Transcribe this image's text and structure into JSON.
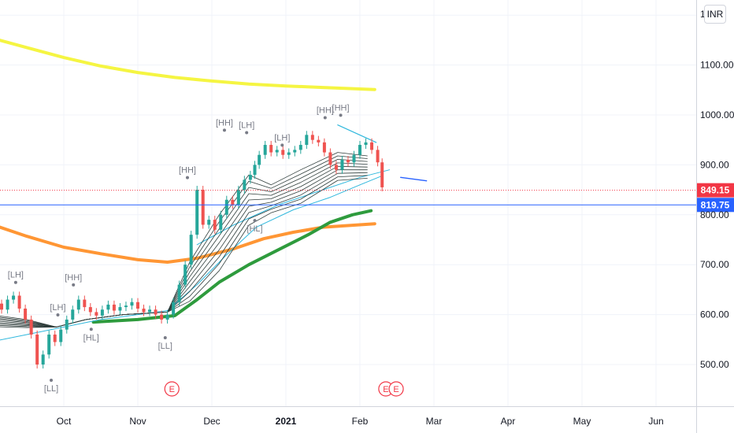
{
  "currency": "INR",
  "chart_data": {
    "type": "candlestick",
    "title": "",
    "y_axis": {
      "ticks": [
        "500.00",
        "600.00",
        "700.00",
        "800.00",
        "900.00",
        "1000.00",
        "1100.00",
        "1200.00"
      ],
      "visible_top_tick": "1"
    },
    "x_axis": {
      "ticks": [
        "Oct",
        "Nov",
        "Dec",
        "2021",
        "Feb",
        "Mar",
        "Apr",
        "May",
        "Jun"
      ]
    },
    "price_labels": [
      {
        "value": 849.15,
        "text": "849.15",
        "color": "#f23645"
      },
      {
        "value": 819.75,
        "text": "819.75",
        "color": "#2962ff"
      }
    ],
    "swing_labels": [
      {
        "text": "[LH]",
        "month": 8.85,
        "price": 655,
        "pos": "above"
      },
      {
        "text": "[LL]",
        "month": 9.33,
        "price": 478,
        "pos": "below"
      },
      {
        "text": "[LH]",
        "month": 9.42,
        "price": 590,
        "pos": "above"
      },
      {
        "text": "[HH]",
        "month": 9.63,
        "price": 650,
        "pos": "above"
      },
      {
        "text": "[HL]",
        "month": 9.87,
        "price": 580,
        "pos": "below"
      },
      {
        "text": "[LL]",
        "month": 10.87,
        "price": 563,
        "pos": "below"
      },
      {
        "text": "[HH]",
        "month": 11.17,
        "price": 865,
        "pos": "above"
      },
      {
        "text": "[HH]",
        "month": 11.67,
        "price": 960,
        "pos": "above"
      },
      {
        "text": "[LH]",
        "month": 11.97,
        "price": 955,
        "pos": "above"
      },
      {
        "text": "[HL]",
        "month": 12.08,
        "price": 798,
        "pos": "below"
      },
      {
        "text": "[LH]",
        "month": 12.45,
        "price": 930,
        "pos": "above"
      },
      {
        "text": "[HH]",
        "month": 13.03,
        "price": 985,
        "pos": "above"
      },
      {
        "text": "[HH]",
        "month": 13.24,
        "price": 990,
        "pos": "above"
      }
    ],
    "earnings_markers": [
      {
        "text": "E",
        "month": 10.96
      },
      {
        "text": "E",
        "month": 13.85
      },
      {
        "text": "E",
        "month": 13.99
      }
    ],
    "overlays": [
      {
        "name": "long moving average",
        "color": "#f5f542"
      },
      {
        "name": "mid moving average",
        "color": "#ff9634"
      },
      {
        "name": "short moving average",
        "color": "#2e9b3d"
      },
      {
        "name": "ribbon",
        "color": "#2f3d3b"
      },
      {
        "name": "signal line",
        "color": "#30b8dd"
      }
    ],
    "series": [
      {
        "name": "close",
        "x": [
          8.5,
          8.58,
          8.66,
          8.74,
          8.82,
          8.9,
          8.98,
          9.06,
          9.14,
          9.22,
          9.3,
          9.38,
          9.46,
          9.54,
          9.62,
          9.7,
          9.78,
          9.86,
          9.94,
          10.02,
          10.1,
          10.18,
          10.26,
          10.34,
          10.42,
          10.5,
          10.58,
          10.66,
          10.74,
          10.82,
          10.9,
          10.98,
          11.06,
          11.14,
          11.22,
          11.3,
          11.38,
          11.46,
          11.54,
          11.62,
          11.7,
          11.78,
          11.86,
          11.94,
          12.02,
          12.08,
          12.14,
          12.22,
          12.3,
          12.38,
          12.46,
          12.54,
          12.62,
          12.7,
          12.78,
          12.86,
          12.94,
          13.02,
          13.1,
          13.18,
          13.26,
          13.34,
          13.42,
          13.5,
          13.58,
          13.66,
          13.74,
          13.8
        ],
        "values": [
          618,
          622,
          610,
          630,
          638,
          612,
          590,
          560,
          500,
          520,
          560,
          545,
          570,
          590,
          610,
          630,
          615,
          605,
          598,
          610,
          620,
          608,
          615,
          618,
          625,
          612,
          605,
          610,
          600,
          590,
          600,
          625,
          660,
          700,
          760,
          850,
          780,
          790,
          770,
          800,
          830,
          820,
          850,
          870,
          880,
          900,
          920,
          940,
          925,
          930,
          920,
          925,
          930,
          940,
          960,
          950,
          945,
          925,
          900,
          890,
          910,
          905,
          920,
          940,
          945,
          930,
          905,
          855
        ]
      }
    ]
  }
}
